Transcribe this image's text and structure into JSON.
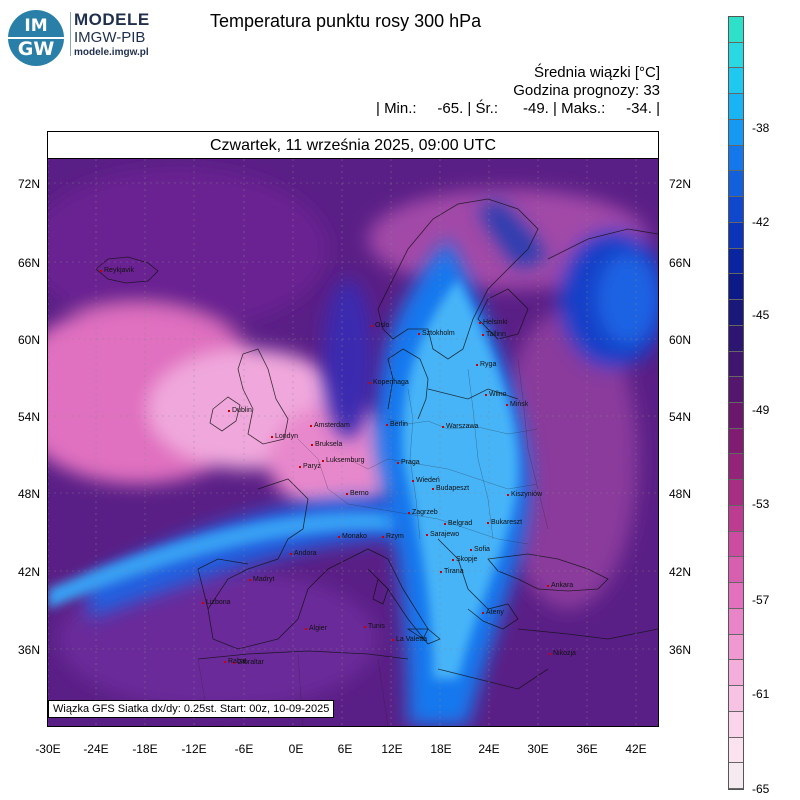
{
  "header": {
    "logo_text_top": "IM",
    "logo_text_bottom": "GW",
    "brand_line1": "MODELE",
    "brand_line2": "IMGW-PIB",
    "brand_url": "modele.imgw.pl",
    "title": "Temperatura punktu rosy 300 hPa"
  },
  "stats": {
    "unit_line": "Średnia wiązki [°C]",
    "forecast_line": "Godzina prognozy: 33",
    "minmax_line": "| Min.:     -65. | Śr.:      -49. | Maks.:     -34. |"
  },
  "map": {
    "date_label": "Czwartek, 11 września 2025, 09:00 UTC",
    "caption": "Wiązka GFS Siatka dx/dy: 0.25st. Start: 00z, 10-09-2025",
    "lat_ticks": [
      "72N",
      "66N",
      "60N",
      "54N",
      "48N",
      "42N",
      "36N"
    ],
    "lon_ticks": [
      "-30E",
      "-24E",
      "-18E",
      "-12E",
      "-6E",
      "0E",
      "6E",
      "12E",
      "18E",
      "24E",
      "30E",
      "36E",
      "42E"
    ],
    "cities": [
      {
        "name": "Reykjavik"
      },
      {
        "name": "Oslo"
      },
      {
        "name": "Sztokholm"
      },
      {
        "name": "Helsinki"
      },
      {
        "name": "Tallinn"
      },
      {
        "name": "Ryga"
      },
      {
        "name": "Wilno"
      },
      {
        "name": "Mińsk"
      },
      {
        "name": "Kopenhaga"
      },
      {
        "name": "Berlin"
      },
      {
        "name": "Warszawa"
      },
      {
        "name": "Amsterdam"
      },
      {
        "name": "Bruksela"
      },
      {
        "name": "Dublin"
      },
      {
        "name": "Londyn"
      },
      {
        "name": "Paryż"
      },
      {
        "name": "Luksemburg"
      },
      {
        "name": "Praga"
      },
      {
        "name": "Wiedeń"
      },
      {
        "name": "Budapeszt"
      },
      {
        "name": "Kiszyniów"
      },
      {
        "name": "Bukareszt"
      },
      {
        "name": "Belgrad"
      },
      {
        "name": "Sarajewo"
      },
      {
        "name": "Zagrzeb"
      },
      {
        "name": "Sofia"
      },
      {
        "name": "Skopje"
      },
      {
        "name": "Tirana"
      },
      {
        "name": "Rzym"
      },
      {
        "name": "Monako"
      },
      {
        "name": "Berno"
      },
      {
        "name": "Andora"
      },
      {
        "name": "Madryt"
      },
      {
        "name": "Lizbona"
      },
      {
        "name": "Gibraltar"
      },
      {
        "name": "Algier"
      },
      {
        "name": "Tunis"
      },
      {
        "name": "La Valetta"
      },
      {
        "name": "Ateny"
      },
      {
        "name": "Ankara"
      },
      {
        "name": "Nikozja"
      },
      {
        "name": "Rabat"
      }
    ]
  },
  "colorbar": {
    "labels": [
      "-38",
      "-42",
      "-45",
      "-49",
      "-53",
      "-57",
      "-61",
      "-65"
    ],
    "colors_top_to_bottom": [
      "#2fe0c8",
      "#29d8e0",
      "#1fc8ee",
      "#18b4f4",
      "#1599f2",
      "#1478ea",
      "#1260dc",
      "#0f48cc",
      "#0c34b8",
      "#0b24a0",
      "#0c1a88",
      "#1a1878",
      "#2c1672",
      "#3f1570",
      "#55166e",
      "#6a186c",
      "#801c72",
      "#942478",
      "#a82e84",
      "#bc3c92",
      "#cc4ca2",
      "#d85eb0",
      "#e270bc",
      "#ea84c8",
      "#f098d2",
      "#f4aedc",
      "#f7c2e4",
      "#f9d4ea",
      "#fae2ee",
      "#f5eaf0"
    ]
  }
}
